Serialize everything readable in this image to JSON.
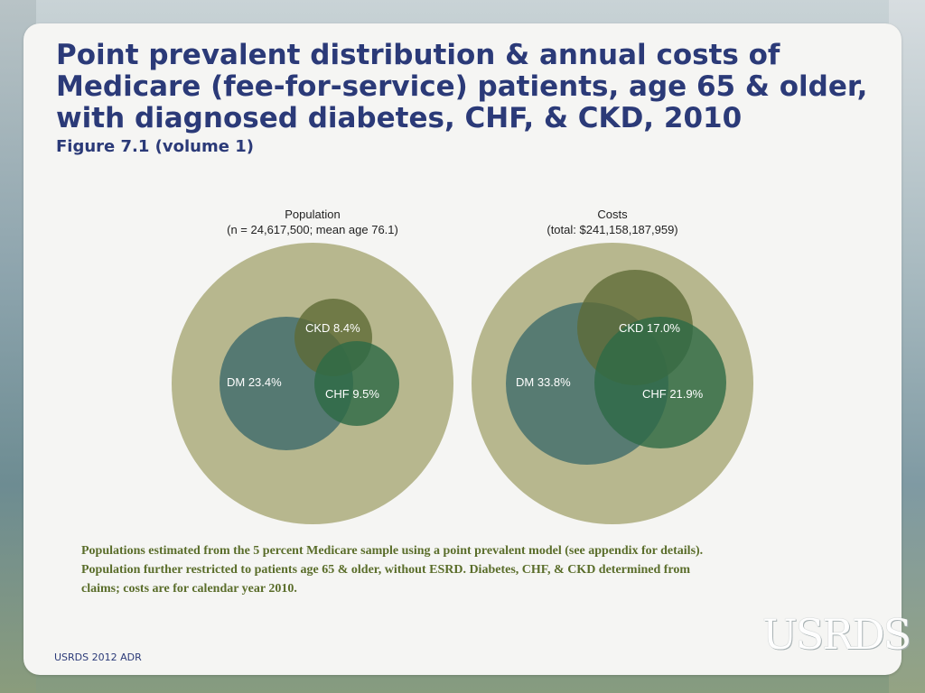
{
  "title": "Point prevalent distribution & annual costs of Medicare (fee-for-service) patients, age 65 & older, with diagnosed diabetes, CHF, & CKD, 2010",
  "subtitle": "Figure 7.1 (volume 1)",
  "colors": {
    "title": "#2b3a78",
    "outer": "#b7b78e",
    "dm": "#3f6b6b",
    "ckd": "#5e6a36",
    "chf": "#2e6a46",
    "note": "#5a6d2a"
  },
  "chart_data": [
    {
      "type": "venn",
      "title": "Population",
      "subtitle": "(n = 24,617,500; mean age 76.1)",
      "sets": [
        {
          "name": "DM",
          "label": "DM 23.4%",
          "percent": 23.4
        },
        {
          "name": "CKD",
          "label": "CKD 8.4%",
          "percent": 8.4
        },
        {
          "name": "CHF",
          "label": "CHF 9.5%",
          "percent": 9.5
        }
      ]
    },
    {
      "type": "venn",
      "title": "Costs",
      "subtitle": "(total: $241,158,187,959)",
      "sets": [
        {
          "name": "DM",
          "label": "DM 33.8%",
          "percent": 33.8
        },
        {
          "name": "CKD",
          "label": "CKD 17.0%",
          "percent": 17.0
        },
        {
          "name": "CHF",
          "label": "CHF 21.9%",
          "percent": 21.9
        }
      ]
    }
  ],
  "note": "Populations estimated from the 5 percent Medicare sample using a point prevalent model (see appendix for details). Population further restricted to patients age 65 & older, without ESRD. Diabetes, CHF, & CKD determined from claims; costs are for calendar year 2010.",
  "footer": "USRDS 2012 ADR",
  "logo": "USRDS"
}
